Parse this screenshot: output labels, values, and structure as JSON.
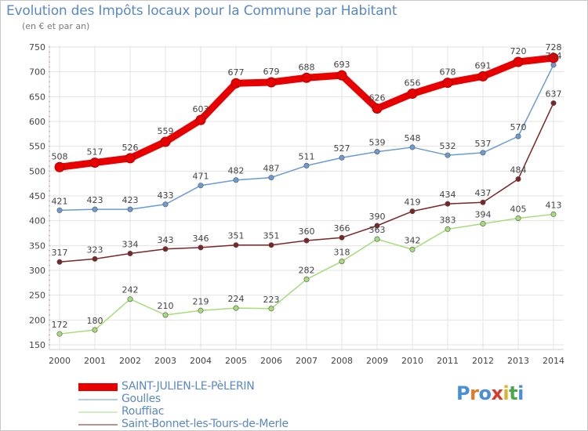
{
  "header": {
    "title": "Evolution des Impôts locaux pour la Commune par Habitant",
    "subtitle": "(en € et par an)"
  },
  "logo": {
    "text": "Proxiti",
    "colors": [
      "#4a8fd6",
      "#e07a2a",
      "#4a8fd6",
      "#d93a2a",
      "#e0b12a",
      "#4aa84a",
      "#4a8fd6"
    ]
  },
  "chart_data": {
    "type": "line",
    "title": "Evolution des Impôts locaux pour la Commune par Habitant",
    "subtitle": "(en € et par an)",
    "xlabel": "",
    "ylabel": "",
    "x": [
      "2000",
      "2001",
      "2002",
      "2003",
      "2004",
      "2005",
      "2006",
      "2007",
      "2008",
      "2009",
      "2010",
      "2011",
      "2012",
      "2013",
      "2014"
    ],
    "ylim": [
      150,
      750
    ],
    "yticks": [
      150,
      200,
      250,
      300,
      350,
      400,
      450,
      500,
      550,
      600,
      650,
      700,
      750
    ],
    "grid": true,
    "legend_position": "bottom-left",
    "series": [
      {
        "name": "SAINT-JULIEN-LE-PèLERIN",
        "color": "#e80000",
        "values": [
          508,
          517,
          526,
          559,
          603,
          677,
          679,
          688,
          693,
          626,
          656,
          678,
          691,
          720,
          728
        ],
        "labels": [
          "508",
          "517",
          "526",
          "559",
          "603",
          "677",
          "679",
          "688",
          "693",
          "626",
          "656",
          "678",
          "691",
          "720",
          "728"
        ]
      },
      {
        "name": "Goulles",
        "color": "#6b9bd2",
        "values": [
          421,
          423,
          423,
          433,
          471,
          482,
          487,
          511,
          527,
          539,
          548,
          532,
          537,
          570,
          714
        ],
        "labels": [
          "421",
          "423",
          "423",
          "433",
          "471",
          "482",
          "487",
          "511",
          "527",
          "539",
          "548",
          "532",
          "537",
          "570",
          "714"
        ]
      },
      {
        "name": "Rouffiac",
        "color": "#a6dc7a",
        "values": [
          172,
          180,
          242,
          210,
          219,
          224,
          223,
          282,
          318,
          363,
          342,
          383,
          394,
          405,
          413
        ],
        "labels": [
          "172",
          "180",
          "242",
          "210",
          "219",
          "224",
          "223",
          "282",
          "318",
          "363",
          "342",
          "383",
          "394",
          "405",
          "413"
        ]
      },
      {
        "name": "Saint-Bonnet-les-Tours-de-Merle",
        "color": "#7a2626",
        "values": [
          317,
          323,
          334,
          343,
          346,
          351,
          351,
          360,
          366,
          390,
          419,
          434,
          437,
          484,
          637
        ],
        "labels": [
          "317",
          "323",
          "334",
          "343",
          "346",
          "351",
          "351",
          "360",
          "366",
          "390",
          "419",
          "434",
          "437",
          "484",
          "637"
        ]
      }
    ]
  }
}
